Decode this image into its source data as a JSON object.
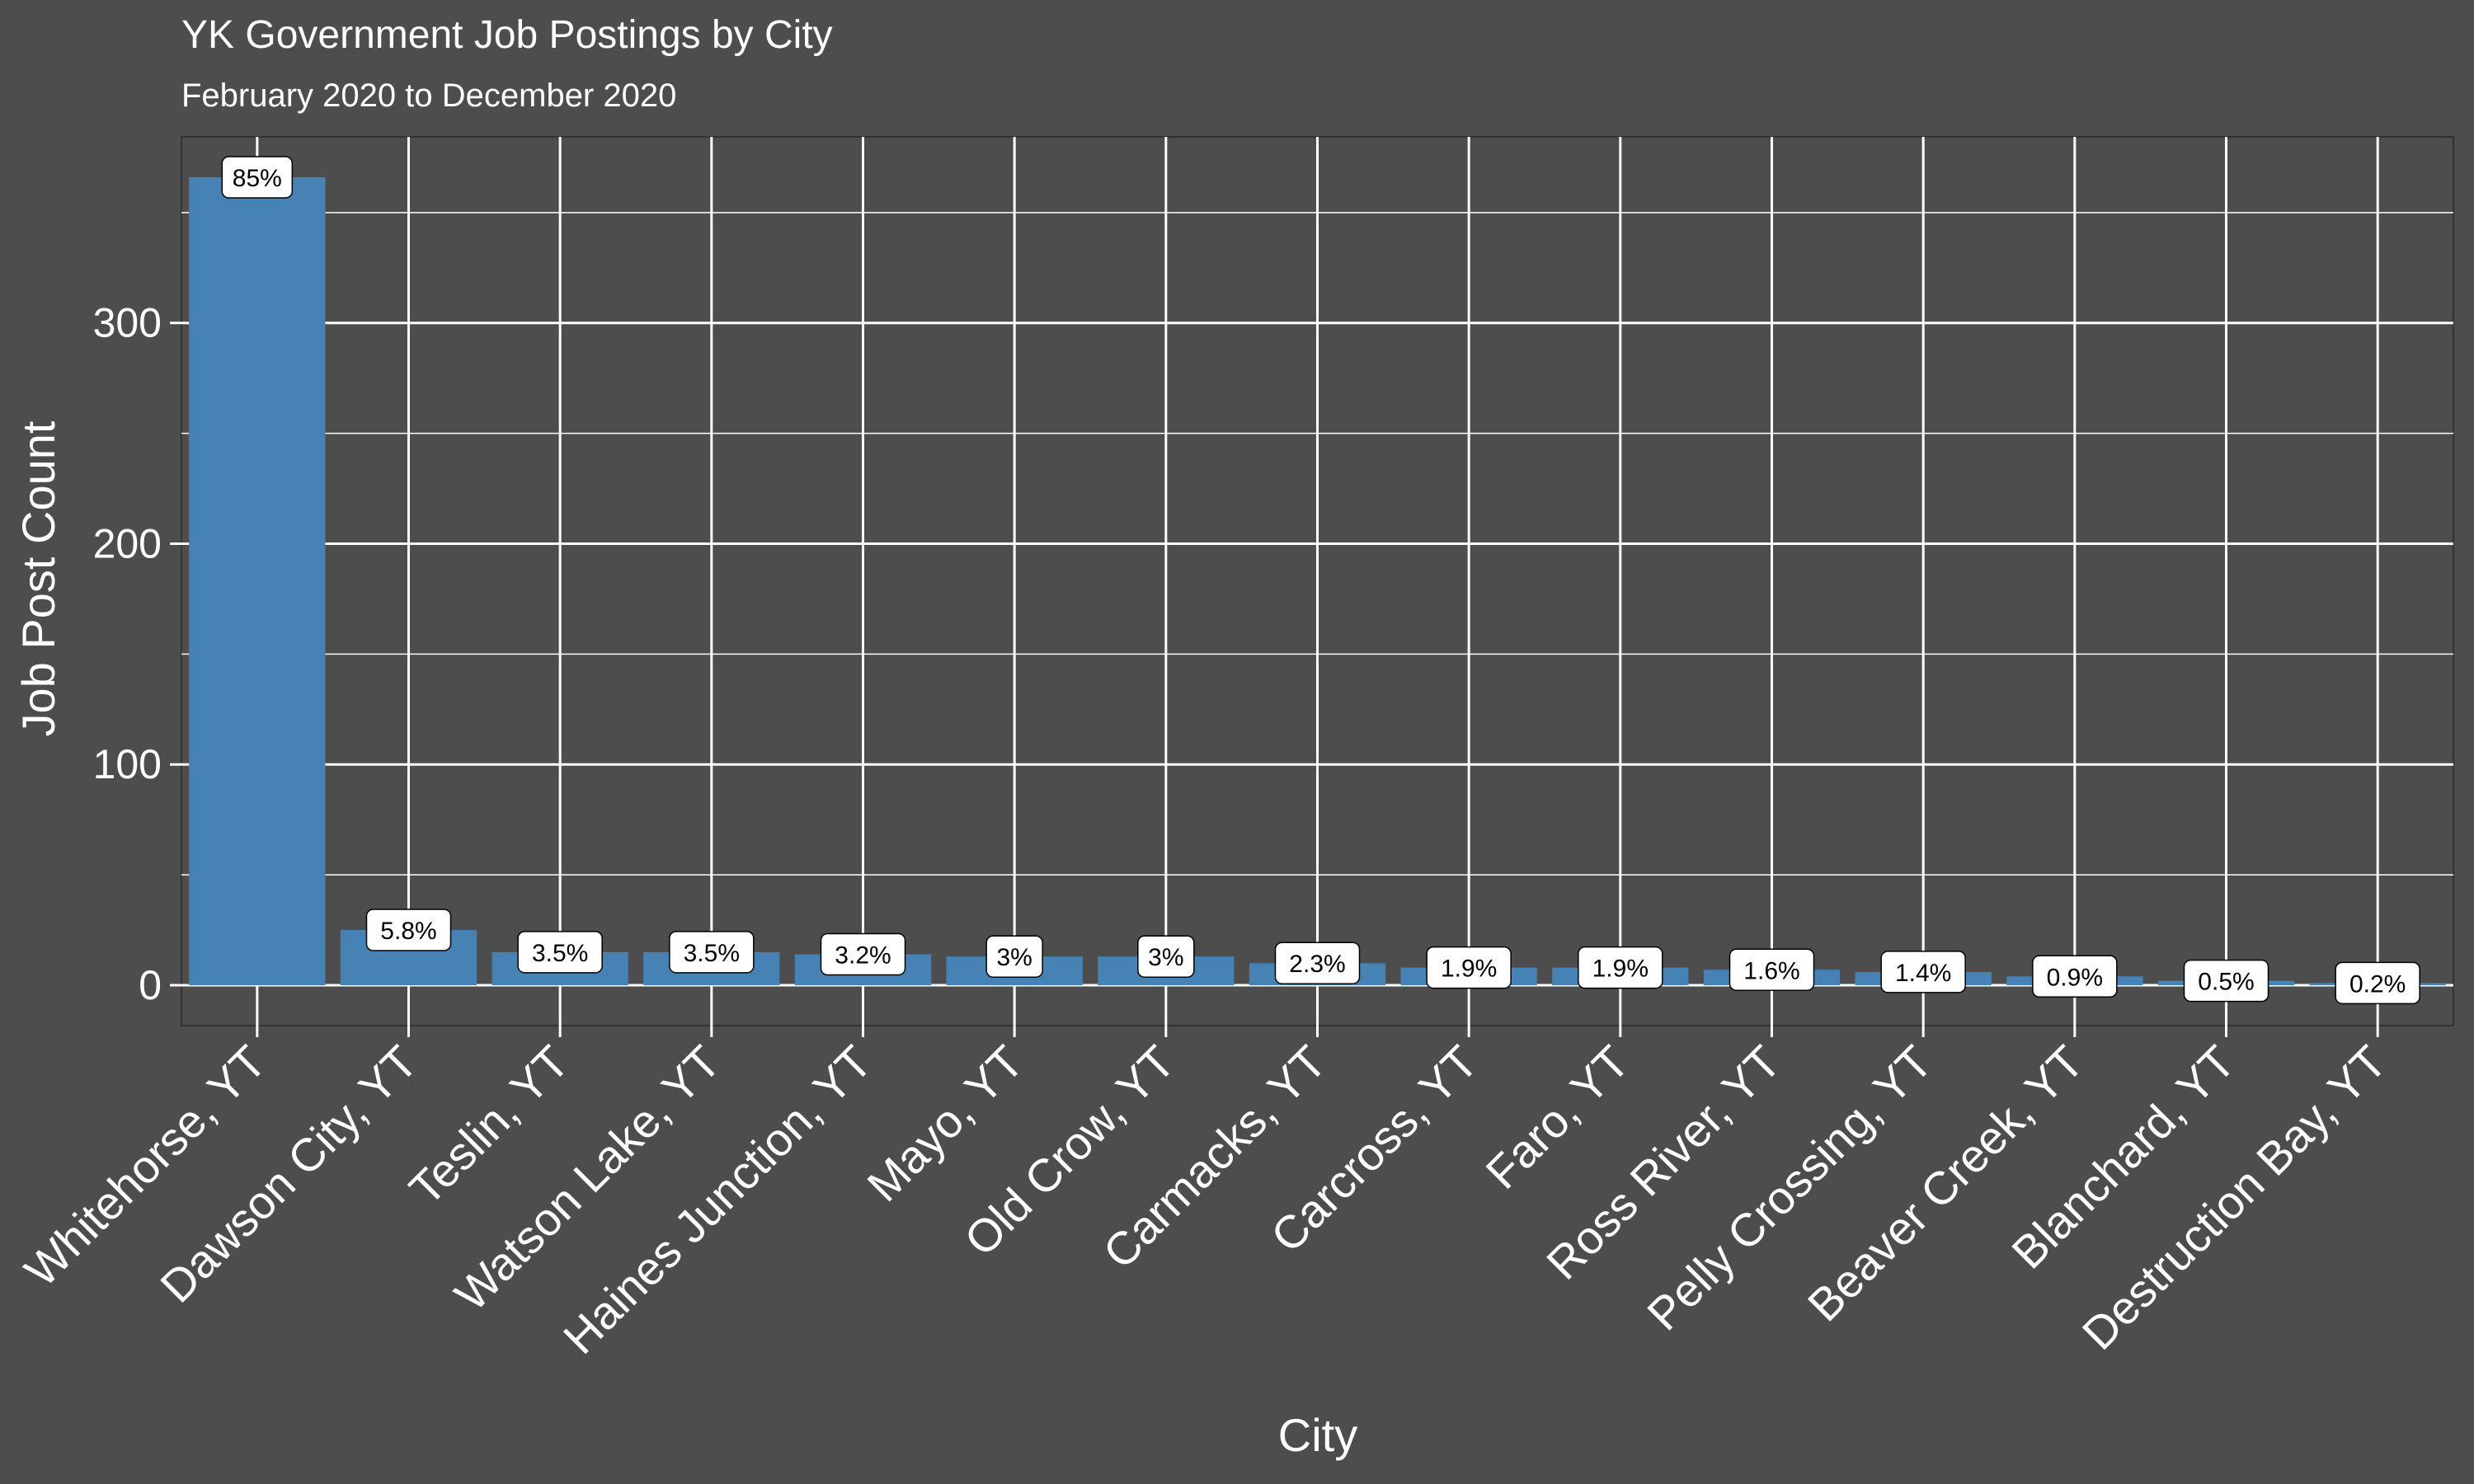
{
  "chart_data": {
    "type": "bar",
    "title": "YK Government Job Postings by City",
    "subtitle": "February 2020 to December 2020",
    "xlabel": "City",
    "ylabel": "Job Post Count",
    "categories": [
      "Whitehorse, YT",
      "Dawson City, YT",
      "Teslin, YT",
      "Watson Lake, YT",
      "Haines Junction, YT",
      "Mayo, YT",
      "Old Crow, YT",
      "Carmacks, YT",
      "Carcross, YT",
      "Faro, YT",
      "Ross River, YT",
      "Pelly Crossing, YT",
      "Beaver Creek, YT",
      "Blanchard, YT",
      "Destruction Bay, YT"
    ],
    "values": [
      366,
      25,
      15,
      15,
      14,
      13,
      13,
      10,
      8,
      8,
      7,
      6,
      4,
      2,
      1
    ],
    "data_labels": [
      "85%",
      "5.8%",
      "3.5%",
      "3.5%",
      "3.2%",
      "3%",
      "3%",
      "2.3%",
      "1.9%",
      "1.9%",
      "1.6%",
      "1.4%",
      "0.9%",
      "0.5%",
      "0.2%"
    ],
    "yticks": [
      0,
      100,
      200,
      300
    ],
    "ylim": [
      -18.3,
      384.3
    ],
    "grid": true,
    "legend": "none",
    "bar_color": "#4682b4",
    "panel_color": "#4d4d4d",
    "grid_color": "#ffffff",
    "text_color": "#ffffff"
  }
}
